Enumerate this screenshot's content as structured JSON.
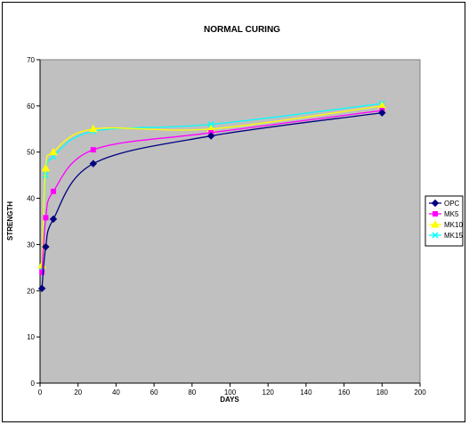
{
  "chart_data": {
    "type": "line",
    "title": "NORMAL CURING",
    "xlabel": "DAYS",
    "ylabel": "STRENGTH",
    "xlim": [
      0,
      200
    ],
    "ylim": [
      0,
      70
    ],
    "xticks": [
      0,
      20,
      40,
      60,
      80,
      100,
      120,
      140,
      160,
      180,
      200
    ],
    "yticks": [
      0,
      10,
      20,
      30,
      40,
      50,
      60,
      70
    ],
    "grid": false,
    "plot_background": "#c0c0c0",
    "legend_position": "right",
    "series": [
      {
        "name": "OPC",
        "color": "#000080",
        "marker": "diamond",
        "x": [
          1,
          3,
          7,
          28,
          90,
          180
        ],
        "y": [
          20.5,
          29.5,
          35.5,
          47.5,
          53.5,
          58.5
        ]
      },
      {
        "name": "MK5",
        "color": "#ff00ff",
        "marker": "square",
        "x": [
          1,
          3,
          7,
          28,
          90,
          180
        ],
        "y": [
          24,
          35.8,
          41.5,
          50.5,
          54.2,
          59
        ]
      },
      {
        "name": "MK10",
        "color": "#ffff00",
        "marker": "triangle",
        "x": [
          1,
          3,
          7,
          28,
          90,
          180
        ],
        "y": [
          25.5,
          46.5,
          50,
          55,
          55,
          60
        ]
      },
      {
        "name": "MK15",
        "color": "#00ffff",
        "marker": "x",
        "x": [
          1,
          3,
          7,
          28,
          90,
          180
        ],
        "y": [
          25,
          45,
          49,
          54.5,
          56,
          60.5
        ]
      }
    ]
  }
}
